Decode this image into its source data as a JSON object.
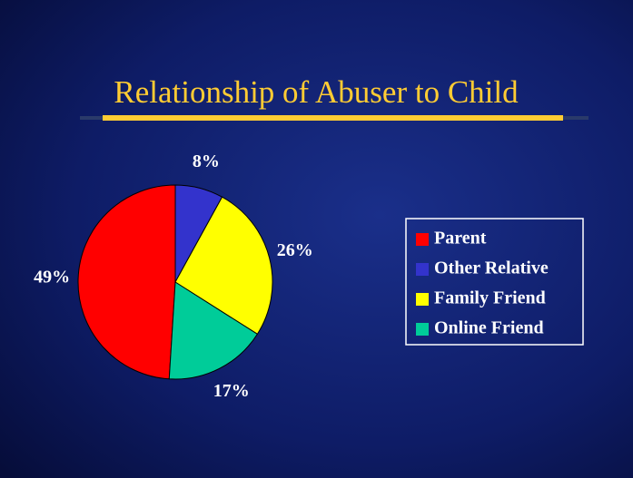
{
  "chart_data": {
    "type": "pie",
    "title": "Relationship of Abuser to Child",
    "categories": [
      "Parent",
      "Other Relative",
      "Family Friend",
      "Online Friend"
    ],
    "values": [
      49,
      8,
      26,
      17
    ],
    "value_labels": [
      "49%",
      "8%",
      "26%",
      "17%"
    ],
    "colors": [
      "#ff0000",
      "#3333cc",
      "#ffff00",
      "#00cc99"
    ],
    "legend": "right"
  }
}
